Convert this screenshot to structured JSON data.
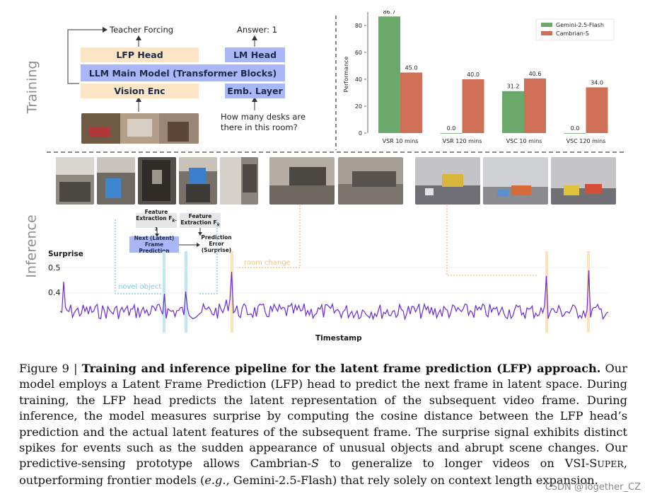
{
  "training": {
    "label": "Training",
    "teacher_forcing": "Teacher Forcing",
    "answer": "Answer: 1",
    "lfp_head": "LFP Head",
    "lm_head": "LM Head",
    "llm_main": "LLM Main Model (Transformer Blocks)",
    "vision_enc": "Vision Enc",
    "emb_layer": "Emb. Layer",
    "question_line1": "How many desks are",
    "question_line2": "there in this room?"
  },
  "chart_data": {
    "type": "bar",
    "ylabel": "Performance",
    "ylim": [
      0,
      90
    ],
    "yticks": [
      "0",
      "20",
      "40",
      "60",
      "80"
    ],
    "categories": [
      "VSR 10 mins",
      "VSR 120 mins",
      "VSC 10 mins",
      "VSC 120 mins"
    ],
    "series": [
      {
        "name": "Gemini-2.5-Flash",
        "color": "#6aa96a",
        "values": [
          86.7,
          0.0,
          31.2,
          0.0
        ],
        "labels": [
          "86.7",
          "0.0",
          "31.2",
          "0.0"
        ]
      },
      {
        "name": "Cambrian-S",
        "color": "#cf6f55",
        "values": [
          45.0,
          40.0,
          40.6,
          34.0
        ],
        "labels": [
          "45.0",
          "40.0",
          "40.6",
          "34.0"
        ]
      }
    ]
  },
  "inference": {
    "label": "Inference",
    "feature_extraction_a": "Feature Extraction F",
    "feature_extraction_a_sub": "k-1",
    "feature_extraction_b": "Feature Extraction F",
    "feature_extraction_b_sub": "k",
    "next_frame_prediction": "Next (Latent) Frame Prediction",
    "prediction_error": "Prediction Error (Surprise)",
    "novel_object": "novel object",
    "room_change": "room change",
    "surprise_label": "Surprise",
    "y05": "0.5",
    "y04": "0.4",
    "timestamp": "Timestamp"
  },
  "caption": {
    "prefix": "Figure 9 | ",
    "bold": "Training and inference pipeline for the latent frame prediction (LFP) approach.",
    "body1": " Our model employs a Latent Frame Prediction (LFP) head to predict the next frame in latent space. During training, the LFP head predicts the latent representation of the subsequent video frame. During inference, the model measures surprise by computing the cosine distance between the LFP head’s prediction and the actual latent features of the subsequent frame. The surprise signal exhibits distinct spikes for events such as the sudden appearance of unusual objects and abrupt scene changes. Our predictive-sensing prototype allows Cambrian-",
    "italic_s": "S",
    "body2": " to generalize to longer videos on VSI-S",
    "small_caps": "UPER",
    "body3": ", outperforming frontier models (",
    "italic_eg": "e.g.",
    "body4": ", Gemini-2.5-Flash) that rely solely on context length expansion."
  },
  "watermark": "CSDN @Together_CZ"
}
